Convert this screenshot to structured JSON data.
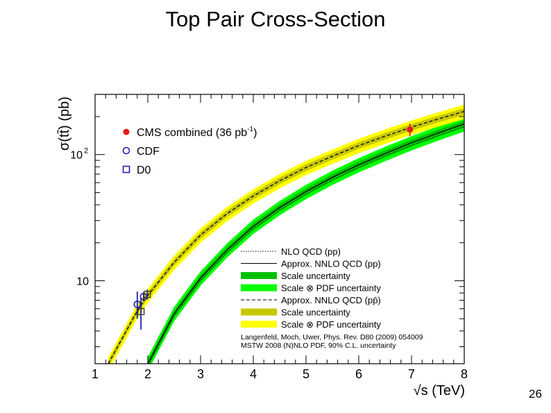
{
  "slide": {
    "title": "Top Pair Cross-Section",
    "page_number": "26"
  },
  "chart_data": {
    "type": "line",
    "title": "",
    "xlabel": "√s (TeV)",
    "ylabel": "σ(tt̄) (pb)",
    "xlim": [
      1,
      8
    ],
    "ylim": [
      2.2,
      300
    ],
    "yscale": "log",
    "x_ticks": [
      "1",
      "2",
      "3",
      "4",
      "5",
      "6",
      "7",
      "8"
    ],
    "y_ticks": [
      {
        "value": 10,
        "label": "10"
      },
      {
        "value": 100,
        "label": "10",
        "exponent": "2"
      }
    ],
    "grid": false,
    "legend_top": {
      "position": "top-left",
      "entries": [
        {
          "label": "CMS combined (36 pb",
          "sup": "-1",
          "suffix": ")",
          "marker": "filled-circle",
          "color": "#e31a1c"
        },
        {
          "label": "CDF",
          "marker": "open-circle",
          "color": "#1f1fb4"
        },
        {
          "label": "D0",
          "marker": "open-square",
          "color": "#1f1fb4"
        }
      ]
    },
    "legend_bottom": {
      "position": "bottom-right",
      "entries": [
        {
          "label": "NLO QCD (pp)",
          "style": "dotted-line",
          "color": "#000000"
        },
        {
          "label": "Approx. NNLO QCD (pp)",
          "style": "solid-line",
          "color": "#000000"
        },
        {
          "label": "Scale uncertainty",
          "style": "box",
          "color": "#00c000"
        },
        {
          "label": "Scale ⊗ PDF uncertainty",
          "style": "box",
          "color": "#00ff00"
        },
        {
          "label": "Approx. NNLO QCD (pp̄)",
          "style": "dashed-line",
          "color": "#000000"
        },
        {
          "label": "Scale uncertainty",
          "style": "box",
          "color": "#c8c800"
        },
        {
          "label": "Scale ⊗ PDF uncertainty",
          "style": "box",
          "color": "#ffff00"
        }
      ],
      "notes": [
        "Langenfeld, Moch, Uwer, Phys. Rev. D80 (2009) 054009",
        "MSTW 2008 (N)NLO PDF, 90% C.L. uncertainty"
      ]
    },
    "series": [
      {
        "name": "Approx. NNLO QCD (pp)",
        "collider": "pp",
        "x": [
          2.0,
          2.5,
          3,
          3.5,
          4,
          4.5,
          5,
          5.5,
          6,
          6.5,
          7,
          7.5,
          8
        ],
        "y": [
          2.2,
          5.5,
          10.5,
          17.5,
          27,
          38,
          51,
          66,
          83,
          102,
          124,
          148,
          175
        ],
        "pdf_band": 0.13,
        "scale_band": 0.06,
        "pdf_color": "#00ff00",
        "scale_color": "#00c000"
      },
      {
        "name": "Approx. NNLO QCD (pp̄)",
        "collider": "ppbar",
        "x": [
          1.25,
          1.5,
          1.75,
          1.96,
          2.5,
          3,
          3.5,
          4,
          4.5,
          5,
          5.5,
          6,
          6.5,
          7,
          7.5,
          8
        ],
        "y": [
          2.2,
          3.4,
          5.3,
          7.3,
          14,
          23,
          34,
          47,
          62,
          79,
          97,
          118,
          140,
          165,
          191,
          220
        ],
        "pdf_band": 0.13,
        "scale_band": 0.06,
        "pdf_color": "#ffff00",
        "scale_color": "#c8c800"
      }
    ],
    "measurements": [
      {
        "name": "CMS combined",
        "marker": "filled-circle",
        "color": "#e31a1c",
        "x": 6.97,
        "y": 158,
        "err_low": 18,
        "err_high": 18
      },
      {
        "name": "CDF",
        "marker": "open-circle",
        "color": "#1f1fb4",
        "x": 1.8,
        "y": 6.5,
        "err_low": 1.5,
        "err_high": 1.7
      },
      {
        "name": "CDF",
        "marker": "open-circle",
        "color": "#1f1fb4",
        "x": 1.92,
        "y": 7.5,
        "err_low": 0.6,
        "err_high": 0.6
      },
      {
        "name": "D0",
        "marker": "open-square",
        "color": "#1f1fb4",
        "x": 1.87,
        "y": 5.7,
        "err_low": 1.6,
        "err_high": 1.6
      },
      {
        "name": "D0",
        "marker": "open-square",
        "color": "#1f1fb4",
        "x": 1.99,
        "y": 7.8,
        "err_low": 0.7,
        "err_high": 0.7
      }
    ]
  }
}
